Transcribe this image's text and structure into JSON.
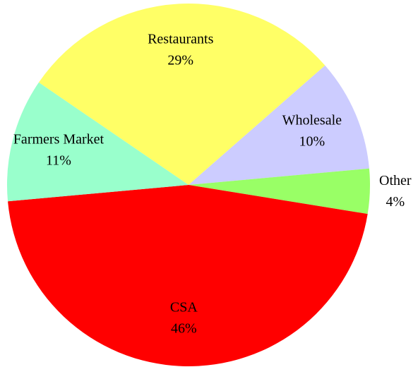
{
  "chart_data": {
    "type": "pie",
    "categories": [
      "Restaurants",
      "Wholesale",
      "Other",
      "CSA",
      "Farmers Market"
    ],
    "values": [
      29,
      10,
      4,
      46,
      11
    ],
    "value_labels": [
      "29%",
      "10%",
      "4%",
      "46%",
      "11%"
    ],
    "colors": [
      "#ffff66",
      "#ccccff",
      "#99ff66",
      "#ff0000",
      "#99ffcc"
    ]
  }
}
